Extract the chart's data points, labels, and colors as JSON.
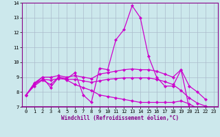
{
  "xlabel": "Windchill (Refroidissement éolien,°C)",
  "background_color": "#cce8ec",
  "line_color": "#cc00cc",
  "grid_color": "#aabbcc",
  "xlim": [
    -0.5,
    23.5
  ],
  "ylim": [
    7,
    14
  ],
  "xticks": [
    0,
    1,
    2,
    3,
    4,
    5,
    6,
    7,
    8,
    9,
    10,
    11,
    12,
    13,
    14,
    15,
    16,
    17,
    18,
    19,
    20,
    21,
    22,
    23
  ],
  "yticks": [
    7,
    8,
    9,
    10,
    11,
    12,
    13,
    14
  ],
  "series": [
    {
      "x": [
        0,
        1,
        2,
        3,
        4,
        5,
        6,
        7,
        8,
        9,
        10,
        11,
        12,
        13,
        14,
        15,
        16,
        17,
        18,
        19,
        20,
        21,
        22
      ],
      "y": [
        7.8,
        8.6,
        9.0,
        8.3,
        9.0,
        8.9,
        9.3,
        7.8,
        7.3,
        9.6,
        9.5,
        11.5,
        12.2,
        13.8,
        13.0,
        10.4,
        9.0,
        8.4,
        8.4,
        9.5,
        6.9,
        6.7,
        7.0
      ]
    },
    {
      "x": [
        0,
        1,
        2,
        3,
        4,
        5,
        6,
        7,
        8,
        9,
        10,
        11,
        12,
        13,
        14,
        15,
        16,
        17,
        18,
        19,
        20,
        21,
        22
      ],
      "y": [
        7.8,
        8.5,
        9.0,
        9.0,
        9.1,
        9.0,
        9.1,
        9.0,
        8.9,
        9.2,
        9.3,
        9.4,
        9.5,
        9.55,
        9.5,
        9.5,
        9.4,
        9.2,
        9.0,
        9.5,
        8.4,
        8.0,
        7.5
      ]
    },
    {
      "x": [
        0,
        1,
        2,
        3,
        4,
        5,
        6,
        7,
        8,
        9,
        10,
        11,
        12,
        13,
        14,
        15,
        16,
        17,
        18,
        19,
        20,
        21,
        22
      ],
      "y": [
        7.8,
        8.5,
        8.85,
        8.8,
        8.9,
        8.85,
        8.85,
        8.75,
        8.65,
        8.75,
        8.85,
        8.9,
        8.95,
        8.95,
        8.95,
        8.95,
        8.85,
        8.7,
        8.5,
        8.1,
        7.6,
        7.25,
        7.05
      ]
    },
    {
      "x": [
        0,
        1,
        2,
        3,
        4,
        5,
        6,
        7,
        8,
        9,
        10,
        11,
        12,
        13,
        14,
        15,
        16,
        17,
        18,
        19,
        20,
        21,
        22
      ],
      "y": [
        7.8,
        8.4,
        8.8,
        8.5,
        9.0,
        8.8,
        8.5,
        8.3,
        8.1,
        7.8,
        7.7,
        7.6,
        7.5,
        7.4,
        7.3,
        7.3,
        7.3,
        7.3,
        7.3,
        7.4,
        7.2,
        6.9,
        7.0
      ]
    }
  ]
}
